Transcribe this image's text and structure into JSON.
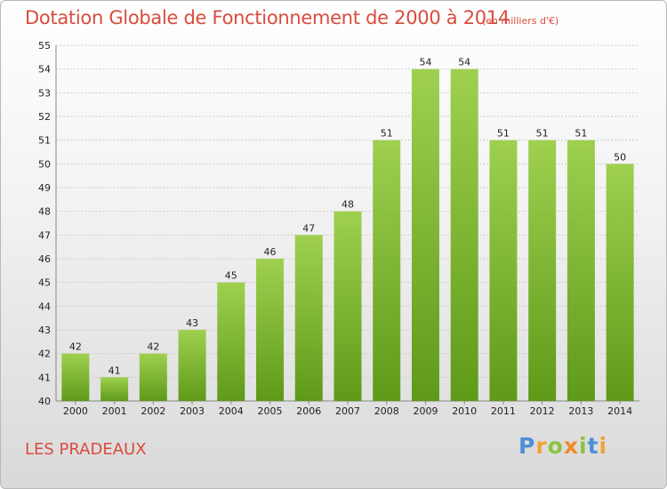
{
  "header": {
    "title": "Dotation Globale de Fonctionnement de 2000 à 2014",
    "unit": "(en milliers d'€)"
  },
  "footer": {
    "place": "LES PRADEAUX",
    "logo": "Proxiti"
  },
  "colors": {
    "title": "#d94c3d",
    "bar_light": "#9fd050",
    "bar_dark": "#5e9a18",
    "grid": "#cccccc"
  },
  "chart_data": {
    "type": "bar",
    "title": "Dotation Globale de Fonctionnement de 2000 à 2014",
    "subtitle": "(en milliers d'€)",
    "categories": [
      "2000",
      "2001",
      "2002",
      "2003",
      "2004",
      "2005",
      "2006",
      "2007",
      "2008",
      "2009",
      "2010",
      "2011",
      "2012",
      "2013",
      "2014"
    ],
    "values": [
      42,
      41,
      42,
      43,
      45,
      46,
      47,
      48,
      51,
      54,
      54,
      51,
      51,
      51,
      50
    ],
    "ylim": [
      40,
      55
    ],
    "yticks": [
      40,
      41,
      42,
      43,
      44,
      45,
      46,
      47,
      48,
      49,
      50,
      51,
      52,
      53,
      54,
      55
    ],
    "grid": true,
    "data_labels": true
  }
}
